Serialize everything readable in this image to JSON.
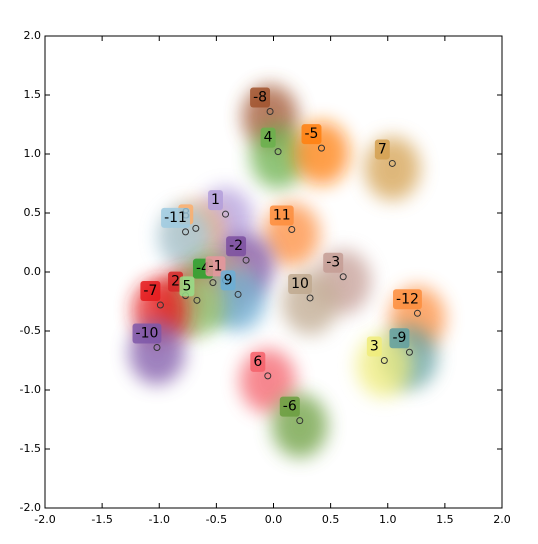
{
  "chart_data": {
    "type": "scatter",
    "xlim": [
      -2,
      2
    ],
    "ylim": [
      -2,
      2
    ],
    "xticks": [
      {
        "value": -2,
        "label": "-2.0"
      },
      {
        "value": -1.5,
        "label": "-1.5"
      },
      {
        "value": -1,
        "label": "-1.0"
      },
      {
        "value": -0.5,
        "label": "-0.5"
      },
      {
        "value": 0,
        "label": "0.0"
      },
      {
        "value": 0.5,
        "label": "0.5"
      },
      {
        "value": 1,
        "label": "1.0"
      },
      {
        "value": 1.5,
        "label": "1.5"
      },
      {
        "value": 2,
        "label": "2.0"
      }
    ],
    "yticks": [
      {
        "value": -2,
        "label": "-2.0"
      },
      {
        "value": -1.5,
        "label": "-1.5"
      },
      {
        "value": -1,
        "label": "-1.0"
      },
      {
        "value": -0.5,
        "label": "-0.5"
      },
      {
        "value": 0,
        "label": "0.0"
      },
      {
        "value": 0.5,
        "label": "0.5"
      },
      {
        "value": 1,
        "label": "1.0"
      },
      {
        "value": 1.5,
        "label": "1.5"
      },
      {
        "value": 2,
        "label": "2.0"
      }
    ],
    "series": [
      {
        "name": "-8",
        "color": "#a0522d",
        "x": -0.03,
        "y": 1.36
      },
      {
        "name": "4",
        "color": "#6ab04c",
        "x": 0.04,
        "y": 1.02
      },
      {
        "name": "-5",
        "color": "#ff7f0e",
        "x": 0.42,
        "y": 1.05
      },
      {
        "name": "7",
        "color": "#d4a050",
        "x": 1.04,
        "y": 0.92
      },
      {
        "name": "1",
        "color": "#b39ddb",
        "x": -0.42,
        "y": 0.49
      },
      {
        "name": "8",
        "color": "#fdae6b",
        "x": -0.68,
        "y": 0.37
      },
      {
        "name": "-11",
        "color": "#9ecae1",
        "x": -0.77,
        "y": 0.34
      },
      {
        "name": "11",
        "color": "#fd8d3c",
        "x": 0.16,
        "y": 0.36
      },
      {
        "name": "-2",
        "color": "#7b4fa0",
        "x": -0.24,
        "y": 0.1
      },
      {
        "name": "-3",
        "color": "#c49c94",
        "x": 0.61,
        "y": -0.04
      },
      {
        "name": "-4",
        "color": "#2ca02c",
        "x": -0.53,
        "y": -0.09
      },
      {
        "name": "-1",
        "color": "#e7969c",
        "x": -0.42,
        "y": -0.07
      },
      {
        "name": "9",
        "color": "#6baed6",
        "x": -0.31,
        "y": -0.19
      },
      {
        "name": "2",
        "color": "#d62728",
        "x": -0.77,
        "y": -0.2
      },
      {
        "name": "5",
        "color": "#98df8a",
        "x": -0.67,
        "y": -0.24
      },
      {
        "name": "-7",
        "color": "#e41a1c",
        "x": -0.99,
        "y": -0.28
      },
      {
        "name": "10",
        "color": "#bfa98f",
        "x": 0.32,
        "y": -0.22
      },
      {
        "name": "-12",
        "color": "#fd8d3c",
        "x": 1.26,
        "y": -0.35
      },
      {
        "name": "-10",
        "color": "#7e57a8",
        "x": -1.02,
        "y": -0.64
      },
      {
        "name": "-9",
        "color": "#5f9ea0",
        "x": 1.19,
        "y": -0.68
      },
      {
        "name": "3",
        "color": "#f0ec7a",
        "x": 0.97,
        "y": -0.75
      },
      {
        "name": "6",
        "color": "#f4606a",
        "x": -0.05,
        "y": -0.88
      },
      {
        "name": "-6",
        "color": "#6a9e3e",
        "x": 0.23,
        "y": -1.26
      }
    ]
  }
}
